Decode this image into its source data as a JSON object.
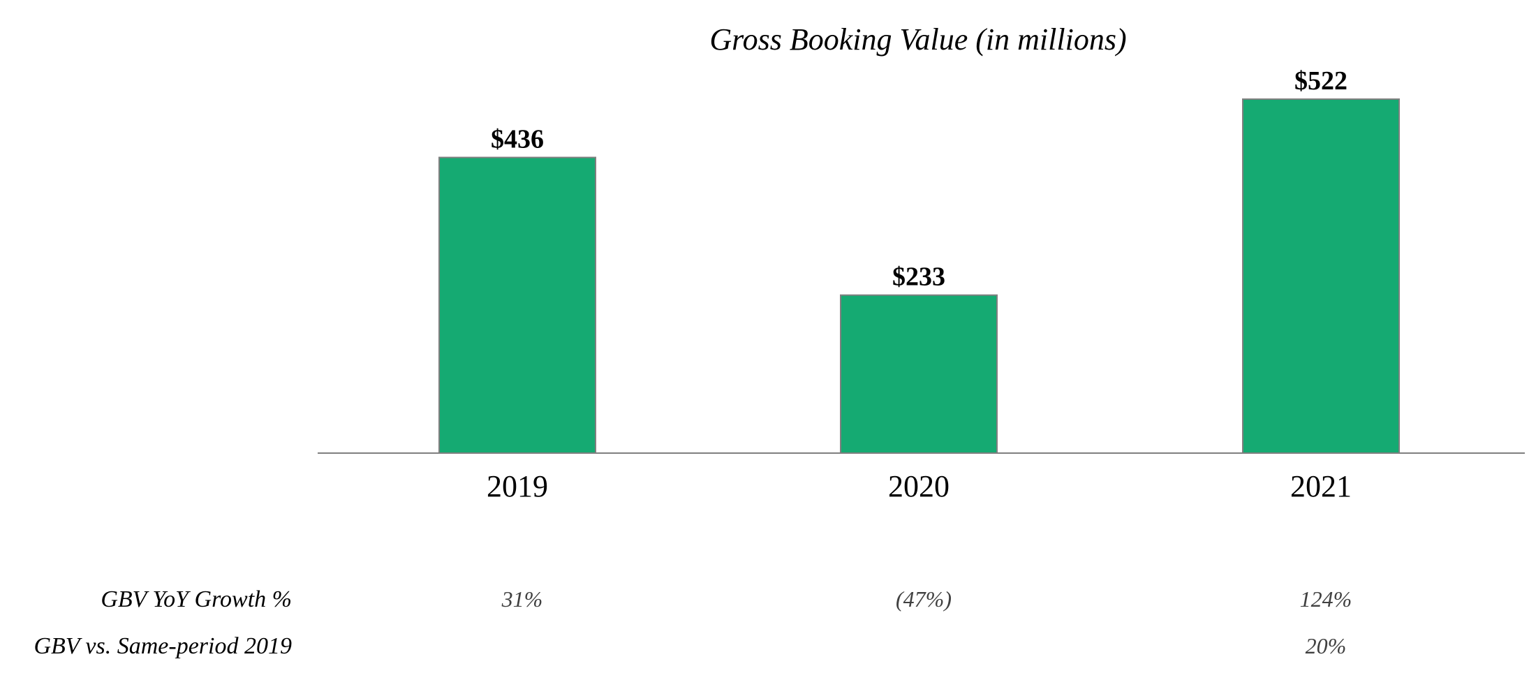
{
  "chart_data": {
    "type": "bar",
    "title": "Gross Booking Value (in millions)",
    "xlabel": "",
    "ylabel": "",
    "categories": [
      "2019",
      "2020",
      "2021"
    ],
    "values": [
      436,
      233,
      522
    ],
    "value_labels": [
      "$436",
      "$233",
      "$522"
    ],
    "ylim": [
      0,
      522
    ],
    "grid": false,
    "bar_color": "#15AA72",
    "bar_border_color": "#7F7F7F",
    "axis_color": "#7F7F7F"
  },
  "table": {
    "rows": [
      {
        "label": "GBV YoY Growth %",
        "values": [
          "31%",
          "(47%)",
          "124%"
        ]
      },
      {
        "label": "GBV vs. Same-period 2019",
        "values": [
          "",
          "",
          "20%"
        ]
      }
    ]
  }
}
